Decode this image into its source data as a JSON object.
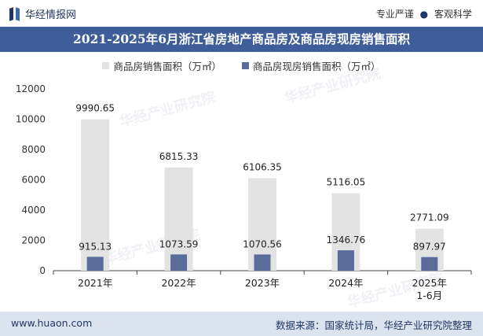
{
  "header": {
    "brand": "华经情报网",
    "tagline_left": "专业严谨",
    "tagline_right": "客观科学"
  },
  "title": "2021-2025年6月浙江省房地产商品房及商品房现房销售面积",
  "footer": {
    "site": "www.huaon.com",
    "source": "数据来源：国家统计局，华经产业研究院整理"
  },
  "watermark": [
    "华经产业研究院",
    "www.huaon.com"
  ],
  "colors": {
    "title_bg": "#3e5d99",
    "series1": "#e3e3e3",
    "series2": "#5a6d9a",
    "footer_bg": "#dbe3ef"
  },
  "chart_data": {
    "type": "bar",
    "categories": [
      "2021年",
      "2022年",
      "2023年",
      "2024年",
      "2025年\n1-6月"
    ],
    "series": [
      {
        "name": "商品房销售面积（万㎡）",
        "values": [
          9990.65,
          6815.33,
          6106.35,
          5116.05,
          2771.09
        ],
        "labels": [
          "9990.65",
          "6815.33",
          "6106.35",
          "5116.05",
          "2771.09"
        ]
      },
      {
        "name": "商品房现房销售面积（万㎡）",
        "values": [
          915.13,
          1073.59,
          1070.56,
          1346.76,
          897.97
        ],
        "labels": [
          "915.13",
          "1073.59",
          "1070.56",
          "1346.76",
          "897.97"
        ]
      }
    ],
    "yticks": [
      "0",
      "2000",
      "4000",
      "6000",
      "8000",
      "10000",
      "12000"
    ],
    "ylim": [
      0,
      12000
    ],
    "legend": "top-center",
    "grid": false
  }
}
